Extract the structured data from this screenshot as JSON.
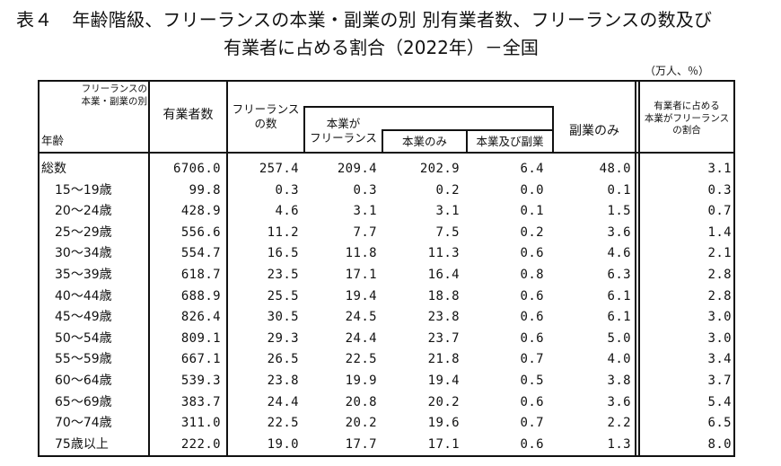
{
  "title": {
    "table_no": "表４",
    "line1": "年齢階級、フリーランスの本業・副業の別 別有業者数、フリーランスの数及び",
    "line2": "有業者に占める割合（2022年）－全国"
  },
  "unit": "（万人、％）",
  "headers": {
    "corner_top_line1": "フリーランスの",
    "corner_top_line2": "本業・副業の別",
    "corner_bottom": "年齢",
    "employed": "有業者数",
    "freelance_count_line1": "フリーランス",
    "freelance_count_line2": "の数",
    "main_freelance_line1": "本業が",
    "main_freelance_line2": "フリーランス",
    "main_only": "本業のみ",
    "main_and_side": "本業及び副業",
    "side_only": "副業のみ",
    "ratio_line1": "有業者に占める",
    "ratio_line2": "本業がフリーランス",
    "ratio_line3": "の割合"
  },
  "rows": [
    {
      "age": "総数",
      "employed": "6706.0",
      "freelance": "257.4",
      "main": "209.4",
      "main_only": "202.9",
      "main_side": "6.4",
      "side_only": "48.0",
      "ratio": "3.1"
    },
    {
      "age": "15～19歳",
      "employed": "99.8",
      "freelance": "0.3",
      "main": "0.3",
      "main_only": "0.2",
      "main_side": "0.0",
      "side_only": "0.1",
      "ratio": "0.3"
    },
    {
      "age": "20～24歳",
      "employed": "428.9",
      "freelance": "4.6",
      "main": "3.1",
      "main_only": "3.1",
      "main_side": "0.1",
      "side_only": "1.5",
      "ratio": "0.7"
    },
    {
      "age": "25～29歳",
      "employed": "556.6",
      "freelance": "11.2",
      "main": "7.7",
      "main_only": "7.5",
      "main_side": "0.2",
      "side_only": "3.6",
      "ratio": "1.4"
    },
    {
      "age": "30～34歳",
      "employed": "554.7",
      "freelance": "16.5",
      "main": "11.8",
      "main_only": "11.3",
      "main_side": "0.6",
      "side_only": "4.6",
      "ratio": "2.1"
    },
    {
      "age": "35～39歳",
      "employed": "618.7",
      "freelance": "23.5",
      "main": "17.1",
      "main_only": "16.4",
      "main_side": "0.8",
      "side_only": "6.3",
      "ratio": "2.8"
    },
    {
      "age": "40～44歳",
      "employed": "688.9",
      "freelance": "25.5",
      "main": "19.4",
      "main_only": "18.8",
      "main_side": "0.6",
      "side_only": "6.1",
      "ratio": "2.8"
    },
    {
      "age": "45～49歳",
      "employed": "826.4",
      "freelance": "30.5",
      "main": "24.5",
      "main_only": "23.8",
      "main_side": "0.6",
      "side_only": "6.1",
      "ratio": "3.0"
    },
    {
      "age": "50～54歳",
      "employed": "809.1",
      "freelance": "29.3",
      "main": "24.4",
      "main_only": "23.7",
      "main_side": "0.6",
      "side_only": "5.0",
      "ratio": "3.0"
    },
    {
      "age": "55～59歳",
      "employed": "667.1",
      "freelance": "26.5",
      "main": "22.5",
      "main_only": "21.8",
      "main_side": "0.7",
      "side_only": "4.0",
      "ratio": "3.4"
    },
    {
      "age": "60～64歳",
      "employed": "539.3",
      "freelance": "23.8",
      "main": "19.9",
      "main_only": "19.4",
      "main_side": "0.5",
      "side_only": "3.8",
      "ratio": "3.7"
    },
    {
      "age": "65～69歳",
      "employed": "383.7",
      "freelance": "24.4",
      "main": "20.8",
      "main_only": "20.2",
      "main_side": "0.6",
      "side_only": "3.6",
      "ratio": "5.4"
    },
    {
      "age": "70～74歳",
      "employed": "311.0",
      "freelance": "22.5",
      "main": "20.2",
      "main_only": "19.6",
      "main_side": "0.7",
      "side_only": "2.2",
      "ratio": "6.5"
    },
    {
      "age": "75歳以上",
      "employed": "222.0",
      "freelance": "19.0",
      "main": "17.7",
      "main_only": "17.1",
      "main_side": "0.6",
      "side_only": "1.3",
      "ratio": "8.0"
    }
  ]
}
